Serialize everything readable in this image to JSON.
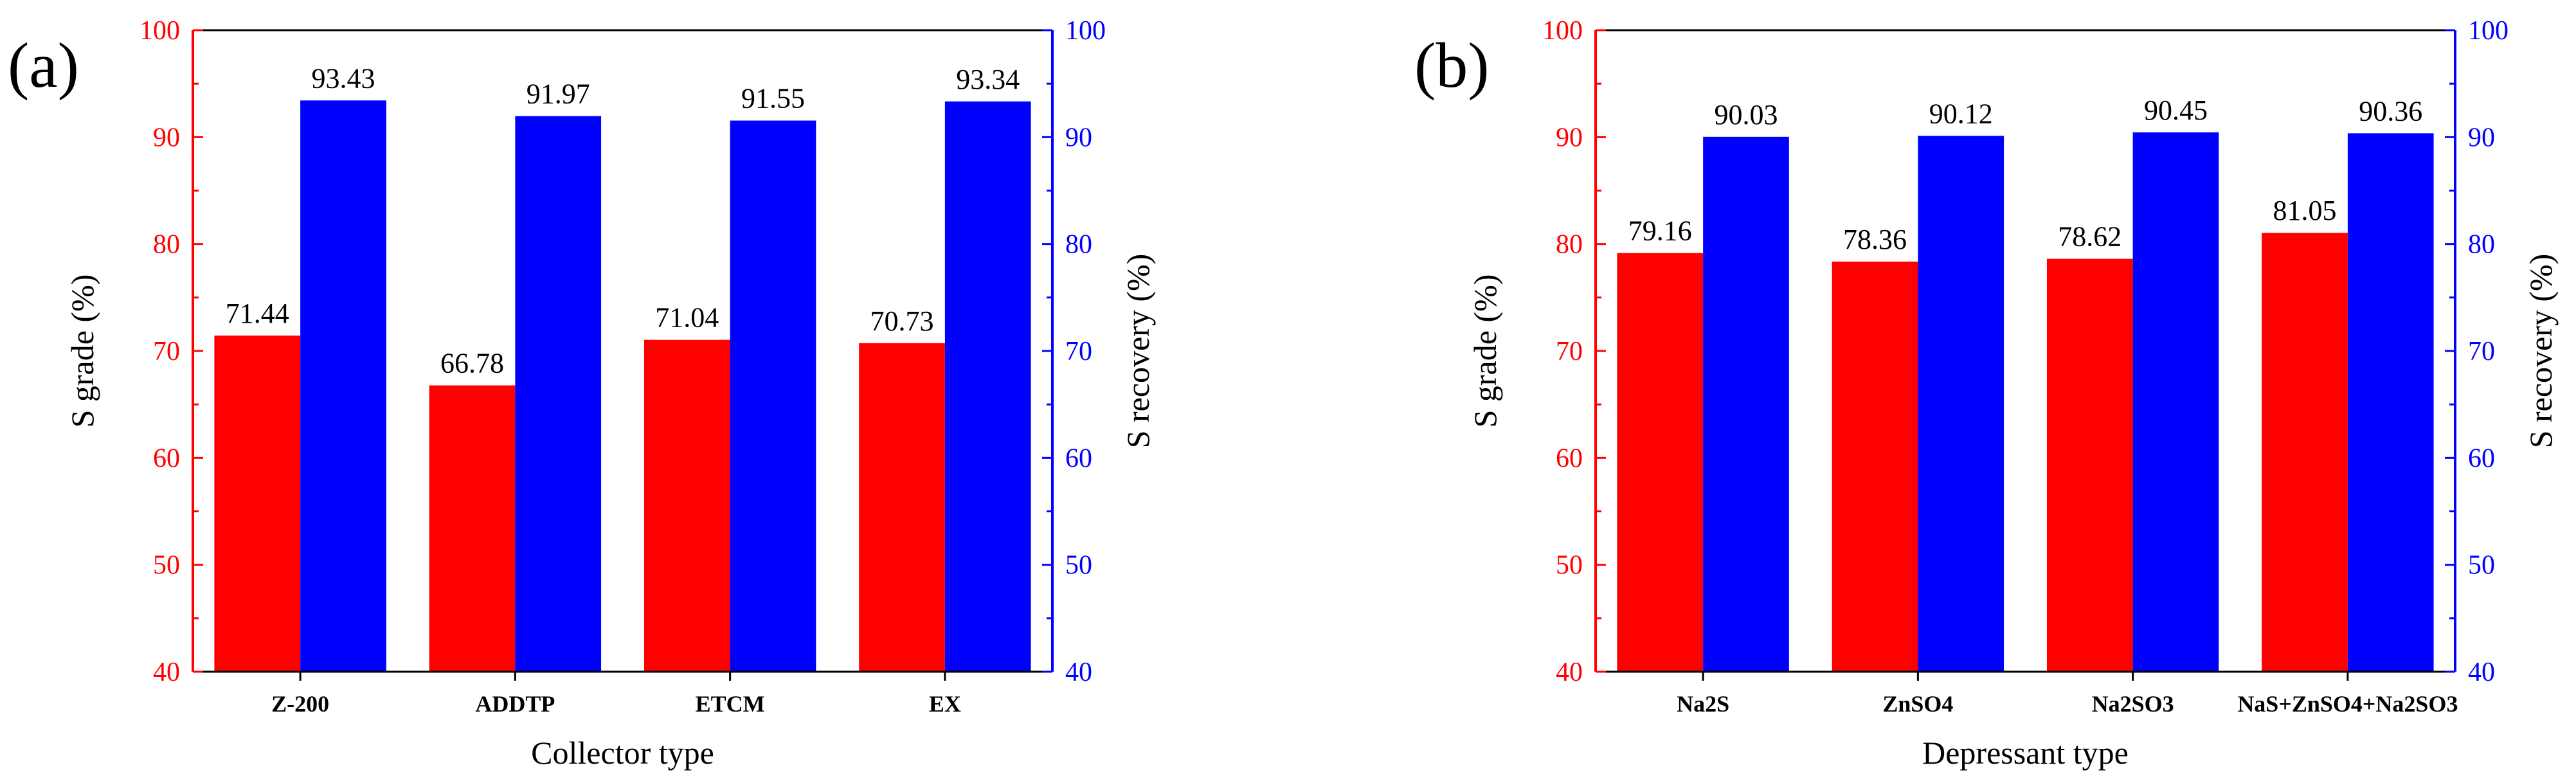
{
  "chart_data": [
    {
      "type": "bar",
      "panel_label": "(a)",
      "categories": [
        "Z-200",
        "ADDTP",
        "ETCM",
        "EX"
      ],
      "series": [
        {
          "name": "S grade",
          "axis": "left",
          "color": "#ff0000",
          "values": [
            71.44,
            66.78,
            71.04,
            70.73
          ],
          "labels": [
            "71.44",
            "66.78",
            "71.04",
            "70.73"
          ]
        },
        {
          "name": "S recovery",
          "axis": "right",
          "color": "#0000ff",
          "values": [
            93.43,
            91.97,
            91.55,
            93.34
          ],
          "labels": [
            "93.43",
            "91.97",
            "91.55",
            "93.34"
          ]
        }
      ],
      "xlabel": "Collector type",
      "ylabel": "S grade (%)",
      "ylabel_right": "S recovery (%)",
      "ylim": [
        40,
        100
      ],
      "ylim_right": [
        40,
        100
      ],
      "yticks": [
        "40",
        "50",
        "60",
        "70",
        "80",
        "90",
        "100"
      ],
      "yticks_right": [
        "40",
        "50",
        "60",
        "70",
        "80",
        "90",
        "100"
      ]
    },
    {
      "type": "bar",
      "panel_label": "(b)",
      "categories": [
        "Na2S",
        "ZnSO4",
        "Na2SO3",
        "NaS+ZnSO4+Na2SO3"
      ],
      "series": [
        {
          "name": "S grade",
          "axis": "left",
          "color": "#ff0000",
          "values": [
            79.16,
            78.36,
            78.62,
            81.05
          ],
          "labels": [
            "79.16",
            "78.36",
            "78.62",
            "81.05"
          ]
        },
        {
          "name": "S recovery",
          "axis": "right",
          "color": "#0000ff",
          "values": [
            90.03,
            90.12,
            90.45,
            90.36
          ],
          "labels": [
            "90.03",
            "90.12",
            "90.45",
            "90.36"
          ]
        }
      ],
      "xlabel": "Depressant type",
      "ylabel": "S grade (%)",
      "ylabel_right": "S recovery (%)",
      "ylim": [
        40,
        100
      ],
      "ylim_right": [
        40,
        100
      ],
      "yticks": [
        "40",
        "50",
        "60",
        "70",
        "80",
        "90",
        "100"
      ],
      "yticks_right": [
        "40",
        "50",
        "60",
        "70",
        "80",
        "90",
        "100"
      ]
    }
  ]
}
